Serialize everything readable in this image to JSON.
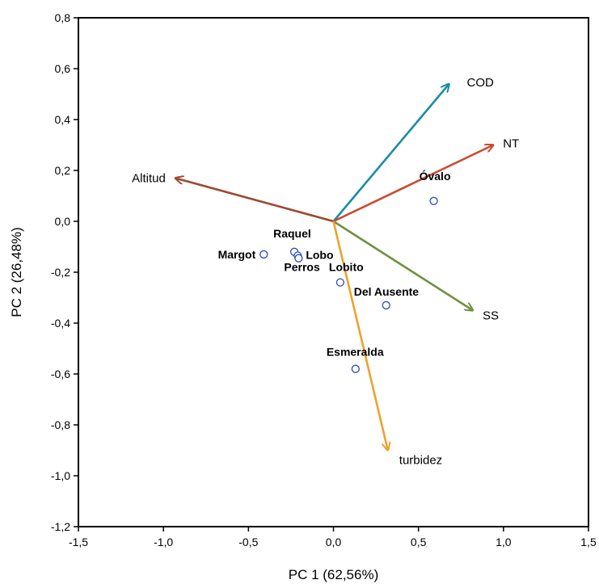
{
  "chart_data": {
    "type": "scatter",
    "subtype": "pca-biplot",
    "title": "",
    "xlabel": "PC 1 (62,56%)",
    "ylabel": "PC 2 (26,48%)",
    "xlim": [
      -1.5,
      1.5
    ],
    "ylim": [
      -1.2,
      0.8
    ],
    "x_ticks": [
      "-1,5",
      "-1,0",
      "-0,5",
      "0,0",
      "0,5",
      "1,0",
      "1,5"
    ],
    "y_ticks": [
      "-1,2",
      "-1,0",
      "-0,8",
      "-0,6",
      "-0,4",
      "-0,2",
      "0,0",
      "0,2",
      "0,4",
      "0,6",
      "0,8"
    ],
    "grid": false,
    "points": [
      {
        "label": "Óvalo",
        "x": 0.59,
        "y": 0.08
      },
      {
        "label": "Raquel",
        "x": -0.23,
        "y": -0.12
      },
      {
        "label": "Lobo",
        "x": -0.21,
        "y": -0.135
      },
      {
        "label": "Perros",
        "x": -0.205,
        "y": -0.145
      },
      {
        "label": "Margot",
        "x": -0.41,
        "y": -0.13
      },
      {
        "label": "Lobito",
        "x": 0.04,
        "y": -0.24
      },
      {
        "label": "Del Ausente",
        "x": 0.31,
        "y": -0.33
      },
      {
        "label": "Esmeralda",
        "x": 0.13,
        "y": -0.58
      }
    ],
    "vectors": [
      {
        "label": "COD",
        "x": 0.68,
        "y": 0.54,
        "color": "#1a8ca0"
      },
      {
        "label": "NT",
        "x": 0.94,
        "y": 0.3,
        "color": "#c94a33"
      },
      {
        "label": "Altitud",
        "x": -0.93,
        "y": 0.17,
        "color": "#9b4a2f"
      },
      {
        "label": "SS",
        "x": 0.82,
        "y": -0.35,
        "color": "#6f9140"
      },
      {
        "label": "turbidez",
        "x": 0.32,
        "y": -0.9,
        "color": "#eea12c"
      }
    ],
    "point_color": "#2b4bbf"
  }
}
